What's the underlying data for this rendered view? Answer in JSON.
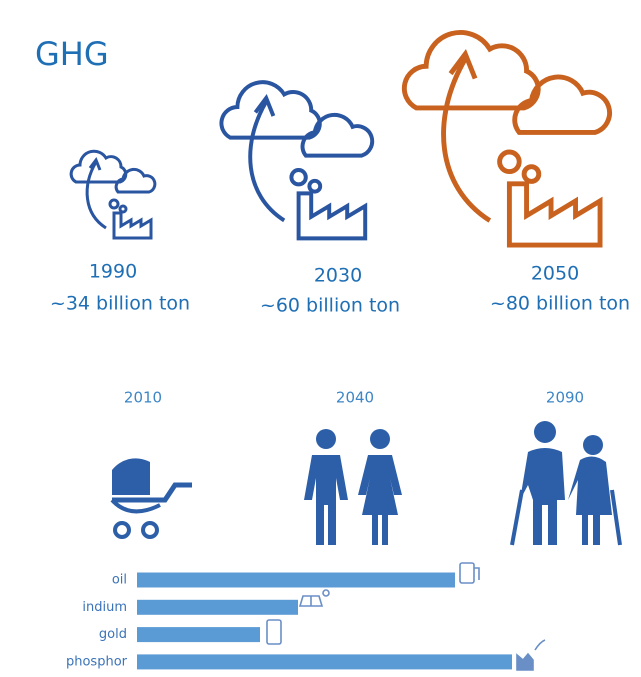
{
  "ghg": {
    "title": "GHG",
    "items": [
      {
        "year": "1990",
        "amount": "~34 billion ton"
      },
      {
        "year": "2030",
        "amount": "~60 billion ton"
      },
      {
        "year": "2050",
        "amount": "~80 billion ton"
      }
    ]
  },
  "population": {
    "years": [
      "2010",
      "2040",
      "2090"
    ]
  },
  "chart_data": {
    "type": "bar",
    "orientation": "horizontal",
    "categories": [
      "oil",
      "indium",
      "gold",
      "phosphor"
    ],
    "values": [
      318,
      161,
      123,
      375
    ],
    "color": "#5b9bd5",
    "xlim": [
      0,
      400
    ]
  }
}
